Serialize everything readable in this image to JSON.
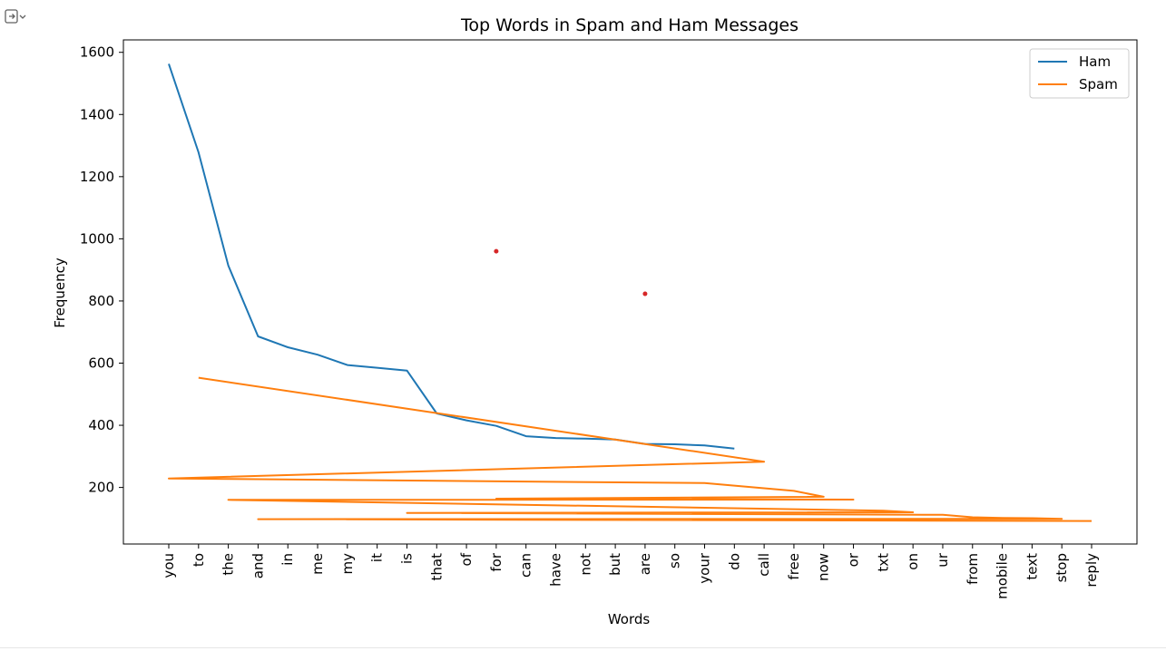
{
  "toolbar": {
    "output_icon": "output-toggle-icon"
  },
  "colors": {
    "ham": "#1f77b4",
    "spam": "#ff7f0e",
    "marker": "#d62728"
  },
  "chart_data": {
    "type": "line",
    "title": "Top Words in Spam and Ham Messages",
    "xlabel": "Words",
    "ylabel": "Frequency",
    "categories": [
      "you",
      "to",
      "the",
      "and",
      "in",
      "me",
      "my",
      "it",
      "is",
      "that",
      "of",
      "for",
      "can",
      "have",
      "not",
      "but",
      "are",
      "so",
      "your",
      "do",
      "call",
      "free",
      "now",
      "or",
      "txt",
      "on",
      "ur",
      "from",
      "mobile",
      "text",
      "stop",
      "reply"
    ],
    "yticks": [
      200,
      400,
      600,
      800,
      1000,
      1200,
      1400,
      1600
    ],
    "ylim": [
      18,
      1640
    ],
    "grid": false,
    "legend": "top-right",
    "series": [
      {
        "name": "Ham",
        "color": "#1f77b4",
        "points": [
          [
            "you",
            1563
          ],
          [
            "to",
            1278
          ],
          [
            "the",
            914
          ],
          [
            "and",
            686
          ],
          [
            "in",
            651
          ],
          [
            "me",
            627
          ],
          [
            "my",
            594
          ],
          [
            "it",
            585
          ],
          [
            "is",
            576
          ],
          [
            "that",
            438
          ],
          [
            "of",
            416
          ],
          [
            "for",
            398
          ],
          [
            "can",
            365
          ],
          [
            "have",
            359
          ],
          [
            "not",
            357
          ],
          [
            "but",
            354
          ],
          [
            "are",
            340
          ],
          [
            "so",
            339
          ],
          [
            "your",
            335
          ],
          [
            "do",
            325
          ]
        ]
      },
      {
        "name": "Spam",
        "color": "#ff7f0e",
        "points": [
          [
            "to",
            553
          ],
          [
            "call",
            283
          ],
          [
            "you",
            229
          ],
          [
            "your",
            214
          ],
          [
            "free",
            189
          ],
          [
            "now",
            170
          ],
          [
            "for",
            164
          ],
          [
            "or",
            161
          ],
          [
            "the",
            160
          ],
          [
            "txt",
            125
          ],
          [
            "on",
            120
          ],
          [
            "is",
            118
          ],
          [
            "ur",
            112
          ],
          [
            "from",
            104
          ],
          [
            "mobile",
            102
          ],
          [
            "text",
            101
          ],
          [
            "stop",
            99
          ],
          [
            "and",
            98
          ],
          [
            "reply",
            92
          ]
        ]
      }
    ],
    "annotations": [
      {
        "category": "for",
        "y": 960,
        "color": "#d62728"
      },
      {
        "category": "are",
        "y": 823,
        "color": "#d62728"
      }
    ]
  }
}
